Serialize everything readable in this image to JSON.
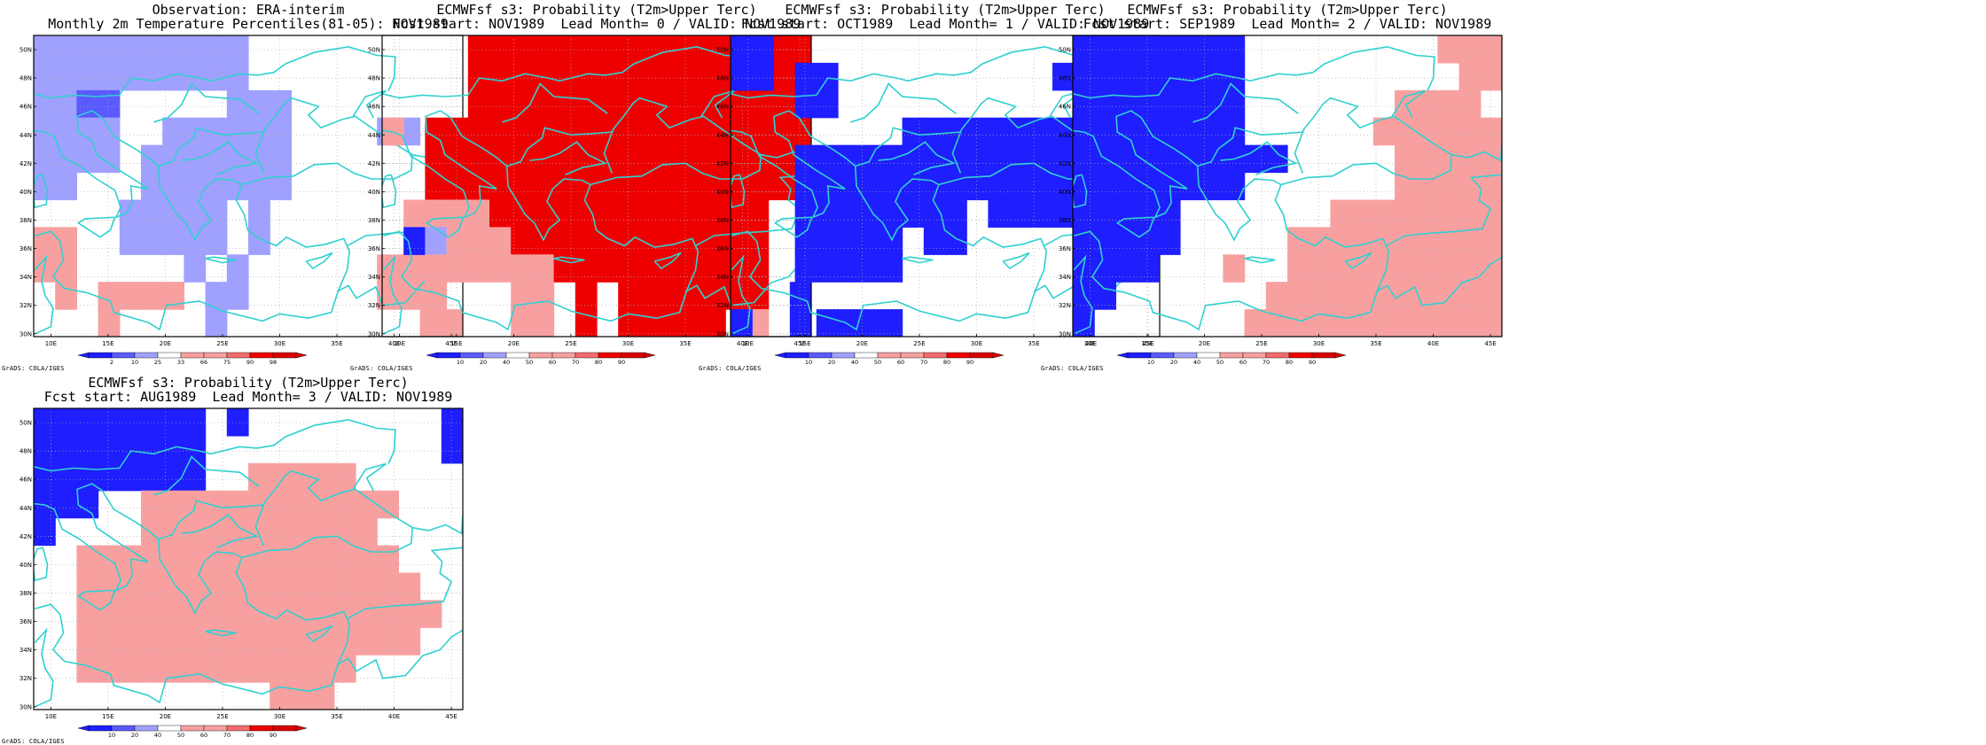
{
  "colors": {
    "coast": "#30d0d0",
    "grid": "#b0b0b0",
    "neg3": "#1e1eff",
    "neg2": "#5a5aff",
    "neg1": "#a0a0ff",
    "pos1": "#f8a0a0",
    "pos2": "#f46c6c",
    "pos3": "#ee0000",
    "pos4": "#d80000"
  },
  "map": {
    "lat_labels": [
      "50N",
      "48N",
      "46N",
      "44N",
      "42N",
      "40N",
      "38N",
      "36N",
      "34N",
      "32N",
      "30N"
    ],
    "lon_labels": [
      "10E",
      "15E",
      "20E",
      "25E",
      "30E",
      "35E",
      "40E",
      "45E"
    ],
    "extent": {
      "lon": [
        8.5,
        46
      ],
      "lat": [
        29.8,
        51
      ]
    }
  },
  "panels": [
    {
      "title_line1": "Observation: ERA-interim",
      "title_line2": "Monthly 2m Temperature Percentiles(81-05): NOV1989",
      "colorbar_labels": [
        "2",
        "10",
        "25",
        "33",
        "66",
        "75",
        "90",
        "98"
      ],
      "credit": "GrADS: COLA/IGES"
    },
    {
      "title_line1": "ECMWFsf s3: Probability (T2m>Upper Terc)",
      "title_line2": "Fcst start: NOV1989  Lead Month= 0 / VALID: NOV1989",
      "colorbar_labels": [
        "10",
        "20",
        "40",
        "50",
        "60",
        "70",
        "80",
        "90"
      ],
      "credit": "GrADS: COLA/IGES"
    },
    {
      "title_line1": "ECMWFsf s3: Probability (T2m>Upper Terc)",
      "title_line2": "Fcst start: OCT1989  Lead Month= 1 / VALID: NOV1989",
      "colorbar_labels": [
        "10",
        "20",
        "40",
        "50",
        "60",
        "70",
        "80",
        "90"
      ],
      "credit": "GrADS: COLA/IGES"
    },
    {
      "title_line1": "ECMWFsf s3: Probability (T2m>Upper Terc)",
      "title_line2": "Fcst start: SEP1989  Lead Month= 2 / VALID: NOV1989",
      "colorbar_labels": [
        "10",
        "20",
        "40",
        "50",
        "60",
        "70",
        "80",
        "90"
      ],
      "credit": "GrADS: COLA/IGES"
    },
    {
      "title_line1": "ECMWFsf s3: Probability (T2m>Upper Terc)",
      "title_line2": "Fcst start: AUG1989  Lead Month= 3 / VALID: NOV1989",
      "colorbar_labels": [
        "10",
        "20",
        "40",
        "50",
        "60",
        "70",
        "80",
        "90"
      ],
      "credit": "GrADS: COLA/IGES"
    }
  ],
  "grids": [
    [
      "1111111111..........",
      "1111111111..........",
      "1122.....111........",
      "1111..111111....11..",
      "1111.1111111........",
      "11...1111111........",
      "....11111.1.........",
      "66..11111.1.......66",
      "66.....1.1......666.",
      ".6.6666.11......666.",
      "...6....1.........66"
    ],
    [
      "....8888888888888888",
      "....8888888888888888",
      "....8888888888888888",
      "6.888888888888888888",
      "..888888888888888888",
      "..888888888888888888",
      ".66668888888888888..",
      ".31666888888888888..",
      "..6666668888888888..",
      "..6...66.8.8888888.3",
      "......66.8.88888.6.3"
    ],
    [
      "33.................3",
      "33.33..........3..33",
      "...33...............",
      "........33333333..33",
      "...3333333333333..33",
      "...3333333333333....",
      "...33333333.33333...",
      "...33333.33.........",
      "...33333............",
      "....................",
      "3...3333............"
    ],
    [
      "33333333.........666",
      "33333333..........66",
      "33333333.......6666.",
      "33333333......666666",
      "3333333333.....66666",
      "33333333.......66666",
      "33333.......66666666",
      "33333.....6666666666",
      "3333...6..6666666666",
      "33.......66666666666",
      "3.......666666666666"
    ],
    [
      "33333333.3.........3",
      "33333333...........3",
      "33333333..66666.....",
      "333..666666666666...",
      "3....66666666666....",
      "..666666666666666...",
      "..6666666666666666..",
      "..66666666666666666.",
      "..6666666666666666..",
      "..6666666666666.....",
      "...........666......"
    ]
  ]
}
